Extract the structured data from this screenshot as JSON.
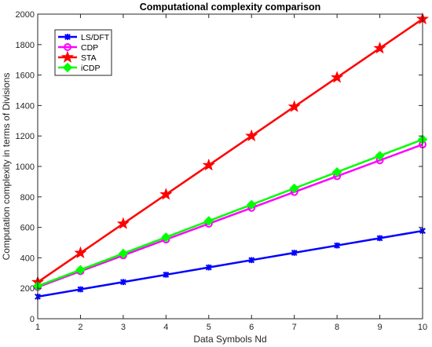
{
  "chart_data": {
    "type": "line",
    "title": "Computational complexity comparison",
    "xlabel": "Data Symbols Nd",
    "ylabel": "Computation complexity in terms of Divisions",
    "x": [
      1,
      2,
      3,
      4,
      5,
      6,
      7,
      8,
      9,
      10
    ],
    "xlim": [
      1,
      10
    ],
    "ylim": [
      0,
      2000
    ],
    "xticks": [
      1,
      2,
      3,
      4,
      5,
      6,
      7,
      8,
      9,
      10
    ],
    "yticks": [
      0,
      200,
      400,
      600,
      800,
      1000,
      1200,
      1400,
      1600,
      1800,
      2000
    ],
    "grid": false,
    "legend_position": "top-left",
    "series": [
      {
        "name": "LS/DFT",
        "color": "#0000ff",
        "marker": "x-star",
        "values": [
          145,
          193,
          241,
          289,
          337,
          385,
          433,
          481,
          529,
          577
        ]
      },
      {
        "name": "CDP",
        "color": "#ff00ff",
        "marker": "circle",
        "values": [
          208,
          312,
          416,
          520,
          624,
          728,
          832,
          936,
          1040,
          1144
        ]
      },
      {
        "name": "STA",
        "color": "#ff0000",
        "marker": "pentagram",
        "values": [
          240,
          432,
          624,
          816,
          1008,
          1200,
          1392,
          1584,
          1776,
          1968
        ]
      },
      {
        "name": "iCDP",
        "color": "#00ff00",
        "marker": "diamond",
        "values": [
          214,
          321,
          428,
          535,
          642,
          749,
          856,
          963,
          1070,
          1177
        ]
      }
    ]
  }
}
